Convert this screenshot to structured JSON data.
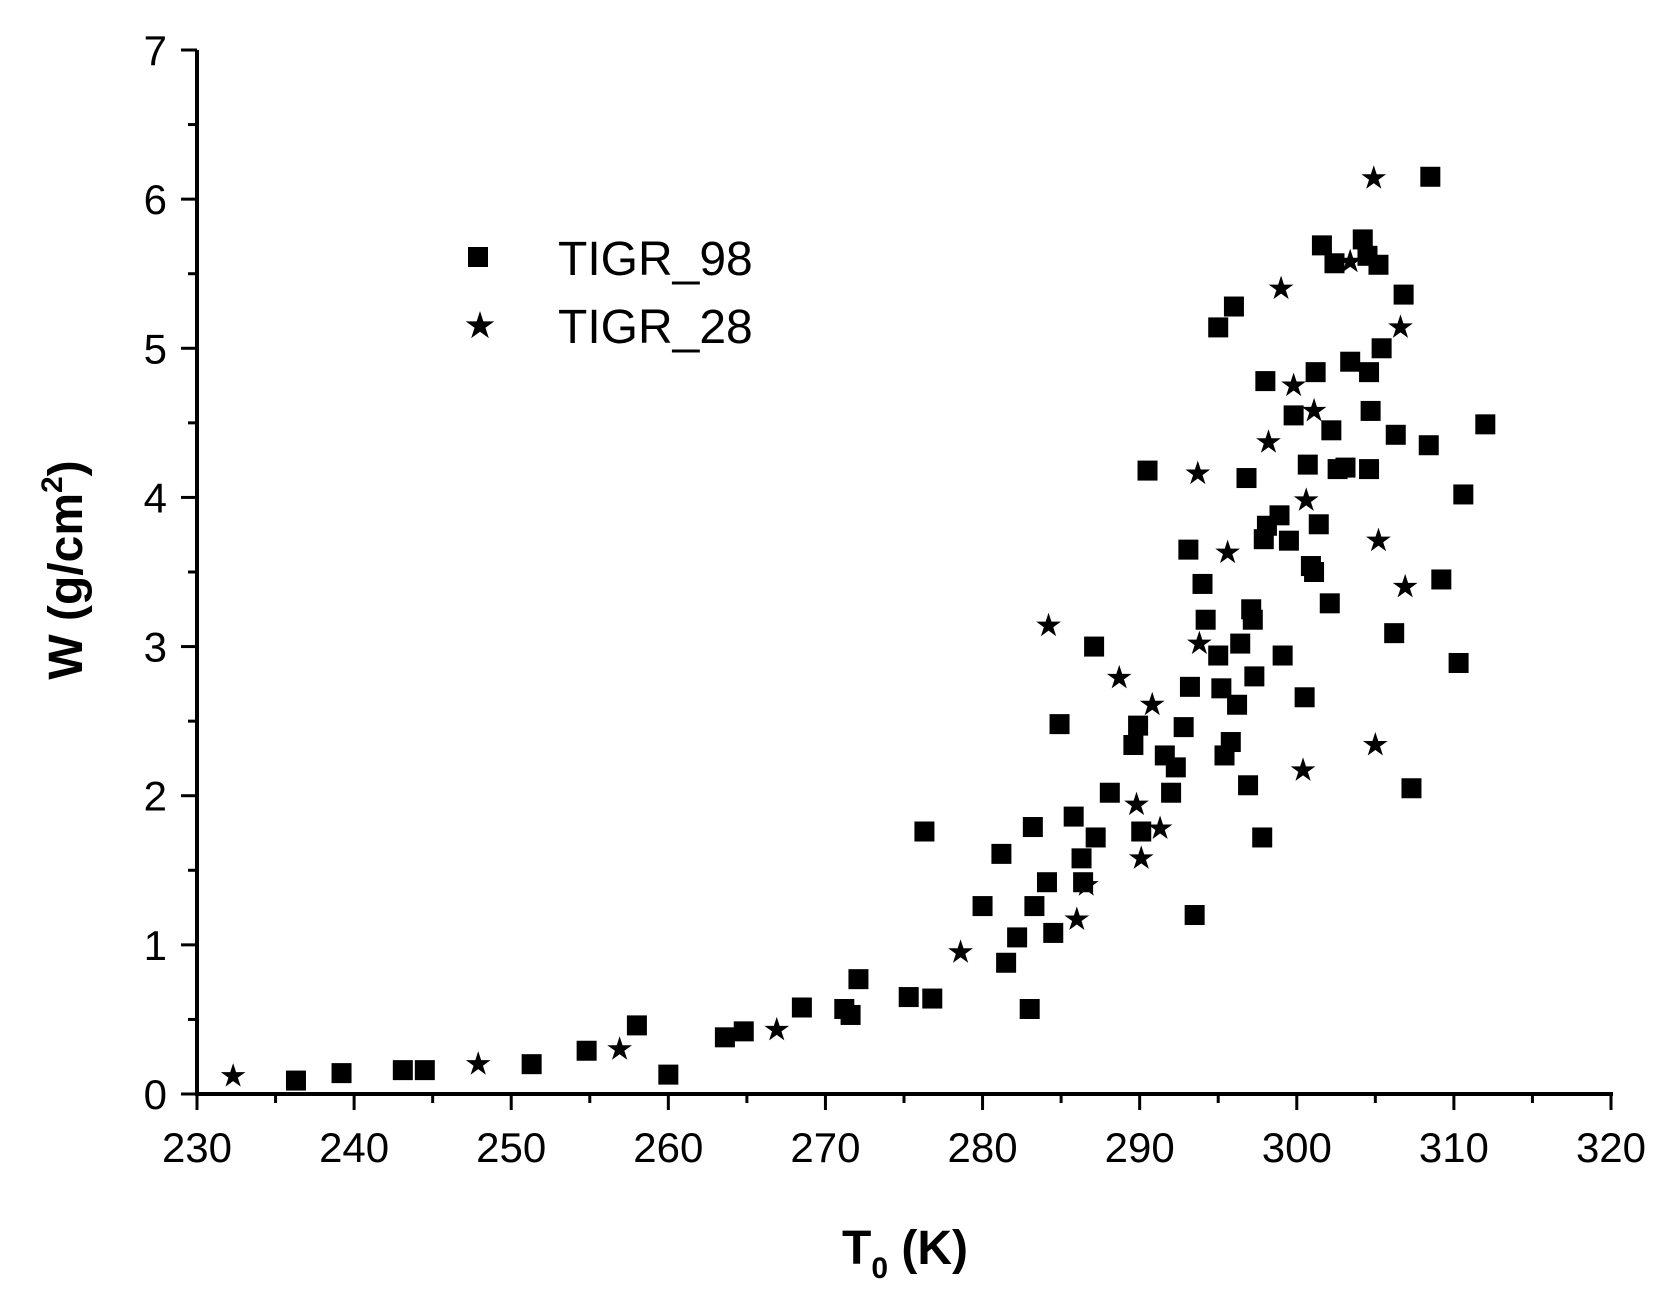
{
  "chart_data": {
    "type": "scatter",
    "title": "",
    "xlabel_main": "T",
    "xlabel_sub": "0",
    "xlabel_rest": " (K)",
    "ylabel_main": "W (g/cm",
    "ylabel_sup": "2",
    "ylabel_rest": ")",
    "xlim": [
      230,
      320
    ],
    "ylim": [
      0,
      7
    ],
    "x_ticks": [
      "230",
      "240",
      "250",
      "260",
      "270",
      "280",
      "290",
      "300",
      "310",
      "320"
    ],
    "y_ticks": [
      "0",
      "1",
      "2",
      "3",
      "4",
      "5",
      "6",
      "7"
    ],
    "grid": false,
    "legend_position": "upper-left",
    "series": [
      {
        "name": "TIGR_98",
        "marker": "square",
        "color": "#000000",
        "points": [
          [
            236.3,
            0.09
          ],
          [
            239.2,
            0.14
          ],
          [
            243.1,
            0.16
          ],
          [
            244.5,
            0.16
          ],
          [
            251.3,
            0.2
          ],
          [
            254.8,
            0.29
          ],
          [
            258.0,
            0.46
          ],
          [
            260.0,
            0.13
          ],
          [
            263.6,
            0.38
          ],
          [
            264.8,
            0.42
          ],
          [
            268.5,
            0.58
          ],
          [
            271.2,
            0.57
          ],
          [
            271.6,
            0.53
          ],
          [
            272.1,
            0.77
          ],
          [
            275.3,
            0.65
          ],
          [
            276.3,
            1.76
          ],
          [
            276.8,
            0.64
          ],
          [
            280.0,
            1.26
          ],
          [
            281.2,
            1.61
          ],
          [
            281.5,
            0.88
          ],
          [
            282.2,
            1.05
          ],
          [
            283.0,
            0.57
          ],
          [
            283.2,
            1.79
          ],
          [
            283.3,
            1.26
          ],
          [
            284.1,
            1.42
          ],
          [
            284.5,
            1.08
          ],
          [
            284.9,
            2.48
          ],
          [
            285.8,
            1.86
          ],
          [
            286.3,
            1.58
          ],
          [
            286.4,
            1.42
          ],
          [
            287.1,
            3.0
          ],
          [
            287.2,
            1.72
          ],
          [
            288.1,
            2.02
          ],
          [
            289.6,
            2.34
          ],
          [
            289.9,
            2.47
          ],
          [
            290.1,
            1.76
          ],
          [
            290.5,
            4.18
          ],
          [
            291.6,
            2.27
          ],
          [
            292.0,
            2.02
          ],
          [
            292.3,
            2.19
          ],
          [
            292.8,
            2.46
          ],
          [
            293.1,
            3.65
          ],
          [
            293.2,
            2.73
          ],
          [
            293.5,
            1.2
          ],
          [
            294.0,
            3.42
          ],
          [
            294.2,
            3.18
          ],
          [
            295.0,
            2.94
          ],
          [
            295.0,
            5.14
          ],
          [
            295.2,
            2.72
          ],
          [
            295.4,
            2.27
          ],
          [
            295.8,
            2.36
          ],
          [
            296.0,
            5.28
          ],
          [
            296.2,
            2.61
          ],
          [
            296.4,
            3.02
          ],
          [
            296.8,
            4.13
          ],
          [
            296.9,
            2.07
          ],
          [
            297.1,
            3.25
          ],
          [
            297.2,
            3.18
          ],
          [
            297.3,
            2.8
          ],
          [
            297.8,
            1.72
          ],
          [
            297.9,
            3.72
          ],
          [
            298.0,
            4.78
          ],
          [
            298.1,
            3.81
          ],
          [
            298.9,
            3.88
          ],
          [
            299.1,
            2.94
          ],
          [
            299.5,
            3.71
          ],
          [
            299.8,
            4.55
          ],
          [
            300.5,
            2.66
          ],
          [
            300.7,
            4.22
          ],
          [
            300.9,
            3.54
          ],
          [
            301.1,
            3.5
          ],
          [
            301.2,
            4.84
          ],
          [
            301.4,
            3.82
          ],
          [
            301.6,
            5.69
          ],
          [
            302.1,
            3.29
          ],
          [
            302.2,
            4.45
          ],
          [
            302.4,
            5.57
          ],
          [
            302.6,
            4.19
          ],
          [
            303.1,
            4.2
          ],
          [
            303.4,
            4.91
          ],
          [
            304.2,
            5.73
          ],
          [
            304.5,
            5.62
          ],
          [
            304.6,
            4.84
          ],
          [
            304.6,
            4.19
          ],
          [
            304.7,
            4.58
          ],
          [
            305.2,
            5.56
          ],
          [
            305.4,
            5.0
          ],
          [
            306.2,
            3.09
          ],
          [
            306.3,
            4.42
          ],
          [
            306.8,
            5.36
          ],
          [
            307.3,
            2.05
          ],
          [
            308.4,
            4.35
          ],
          [
            308.5,
            6.15
          ],
          [
            309.2,
            3.45
          ],
          [
            310.3,
            2.89
          ],
          [
            310.6,
            4.02
          ],
          [
            312.0,
            4.49
          ]
        ]
      },
      {
        "name": "TIGR_28",
        "marker": "star",
        "color": "#000000",
        "points": [
          [
            232.3,
            0.12
          ],
          [
            247.9,
            0.2
          ],
          [
            256.9,
            0.3
          ],
          [
            266.9,
            0.43
          ],
          [
            278.6,
            0.95
          ],
          [
            284.2,
            3.14
          ],
          [
            286.0,
            1.17
          ],
          [
            286.6,
            1.4
          ],
          [
            288.7,
            2.79
          ],
          [
            289.8,
            1.94
          ],
          [
            290.1,
            1.58
          ],
          [
            290.8,
            2.61
          ],
          [
            291.3,
            1.78
          ],
          [
            293.7,
            4.16
          ],
          [
            293.8,
            3.02
          ],
          [
            295.6,
            3.63
          ],
          [
            298.2,
            4.37
          ],
          [
            299.0,
            5.4
          ],
          [
            299.8,
            4.75
          ],
          [
            300.4,
            2.17
          ],
          [
            300.6,
            3.98
          ],
          [
            301.1,
            4.58
          ],
          [
            303.4,
            5.58
          ],
          [
            304.9,
            6.14
          ],
          [
            305.0,
            2.34
          ],
          [
            305.2,
            3.71
          ],
          [
            306.6,
            5.14
          ],
          [
            306.9,
            3.4
          ]
        ]
      }
    ]
  }
}
